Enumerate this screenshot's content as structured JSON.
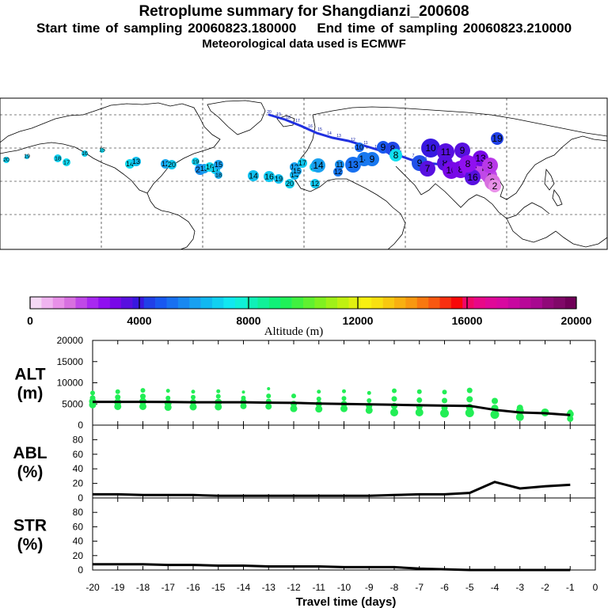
{
  "header": {
    "title": "Retroplume summary for Shangdianzi_200608",
    "start_label": "Start time of sampling 20060823.180000",
    "end_label": "End time of sampling 20060823.210000",
    "met_label": "Meteorological data used is ECMWF"
  },
  "colorbar": {
    "label": "Altitude (m)",
    "ticks": [
      "0",
      "4000",
      "8000",
      "12000",
      "16000",
      "20000"
    ],
    "colors": [
      "#f5d8f5",
      "#f0b4f0",
      "#e890e8",
      "#d870e0",
      "#c048e8",
      "#a828f0",
      "#9010f0",
      "#7808e8",
      "#5810e0",
      "#3818e0",
      "#2040e8",
      "#1858f0",
      "#1870f0",
      "#1888f0",
      "#18a0f0",
      "#10b8f0",
      "#10d0f0",
      "#10e8f0",
      "#10f0d8",
      "#10f0b8",
      "#10f098",
      "#10f078",
      "#20f058",
      "#40f040",
      "#60f030",
      "#80f020",
      "#a0f018",
      "#c0f010",
      "#e0f010",
      "#f8f010",
      "#f8e010",
      "#f8c810",
      "#f8b010",
      "#f89810",
      "#f87810",
      "#f85810",
      "#f83010",
      "#f80808",
      "#f00868",
      "#e80888",
      "#e00898",
      "#d808a0",
      "#c808a0",
      "#b80898",
      "#a80890",
      "#900878",
      "#800868",
      "#700058"
    ]
  },
  "map": {
    "points": [
      {
        "label": "20",
        "c": "#10d0f0"
      },
      {
        "label": "19",
        "c": "#10c8f0"
      },
      {
        "label": "18",
        "c": "#10d0f0"
      },
      {
        "label": "17",
        "c": "#10d8f0"
      },
      {
        "label": "16",
        "c": "#10d0f0"
      },
      {
        "label": "15",
        "c": "#10d8f0"
      },
      {
        "label": "14",
        "c": "#10d8f0"
      },
      {
        "label": "13",
        "c": "#10c0f0"
      },
      {
        "label": "12",
        "c": "#18a8f0"
      },
      {
        "label": "20",
        "c": "#10c8f0"
      },
      {
        "label": "19",
        "c": "#10d0f0"
      },
      {
        "label": "20",
        "c": "#1890f0"
      },
      {
        "label": "13",
        "c": "#18a0f0"
      },
      {
        "label": "16",
        "c": "#10d8f0"
      },
      {
        "label": "17",
        "c": "#10d0f0"
      },
      {
        "label": "18",
        "c": "#18b0f0"
      },
      {
        "label": "15",
        "c": "#18a0f0"
      },
      {
        "label": "14",
        "c": "#10c0f0"
      },
      {
        "label": "16",
        "c": "#10c8f0"
      },
      {
        "label": "19",
        "c": "#10c0f0"
      },
      {
        "label": "20",
        "c": "#10d0f0"
      },
      {
        "label": "17",
        "c": "#10c8f0"
      },
      {
        "label": "13",
        "c": "#18a0f0"
      },
      {
        "label": "14",
        "c": "#10b8f0"
      },
      {
        "label": "15",
        "c": "#18a8f0"
      },
      {
        "label": "12",
        "c": "#10c8f0"
      },
      {
        "label": "11",
        "c": "#10d0f0"
      },
      {
        "label": "14",
        "c": "#18a0f0"
      },
      {
        "label": "11",
        "c": "#1890f0"
      },
      {
        "label": "12",
        "c": "#1878f0"
      },
      {
        "label": "13",
        "c": "#1870f0"
      },
      {
        "label": "14",
        "c": "#1878f0"
      },
      {
        "label": "9",
        "c": "#1878f0"
      },
      {
        "label": "10",
        "c": "#1868f0"
      },
      {
        "label": "9",
        "c": "#1858f0"
      },
      {
        "label": "8",
        "c": "#2048e8"
      },
      {
        "label": "8",
        "c": "#10e0f0"
      },
      {
        "label": "9",
        "c": "#2050e8"
      },
      {
        "label": "7",
        "c": "#5810e0"
      },
      {
        "label": "10",
        "c": "#3818e0"
      },
      {
        "label": "8",
        "c": "#5810e0"
      },
      {
        "label": "11",
        "c": "#5810e0"
      },
      {
        "label": "9",
        "c": "#5810e0"
      },
      {
        "label": "10",
        "c": "#7808e8"
      },
      {
        "label": "8",
        "c": "#7808e8"
      },
      {
        "label": "7",
        "c": "#9010f0"
      },
      {
        "label": "6",
        "c": "#a828f0"
      },
      {
        "label": "5",
        "c": "#c048e8"
      },
      {
        "label": "4",
        "c": "#c048e8"
      },
      {
        "label": "3",
        "c": "#d870e0"
      },
      {
        "label": "2",
        "c": "#e890e8"
      },
      {
        "label": "13",
        "c": "#7808e8"
      },
      {
        "label": "16",
        "c": "#5810e0"
      },
      {
        "label": "19",
        "c": "#2040e8"
      },
      {
        "label": "3",
        "c": "#b838e8"
      },
      {
        "label": "8",
        "c": "#9010f0"
      }
    ],
    "track_labels": [
      "20",
      "19",
      "18",
      "17",
      "16",
      "15",
      "14",
      "13",
      "12",
      "11",
      "10",
      "9",
      "8",
      "7",
      "6",
      "5",
      "4",
      "3",
      "2",
      "1"
    ]
  },
  "panels": [
    {
      "label_top": "ALT",
      "label_bottom": "(m)",
      "yticks": [
        "20000",
        "15000",
        "10000",
        "5000",
        "0"
      ],
      "ymax": 20000,
      "line": [
        [
          -20,
          5500
        ],
        [
          -19,
          5500
        ],
        [
          -18,
          5500
        ],
        [
          -17,
          5450
        ],
        [
          -16,
          5400
        ],
        [
          -15,
          5400
        ],
        [
          -14,
          5400
        ],
        [
          -13,
          5300
        ],
        [
          -12,
          5250
        ],
        [
          -11,
          5100
        ],
        [
          -10,
          5000
        ],
        [
          -9,
          4900
        ],
        [
          -8,
          4800
        ],
        [
          -7,
          4700
        ],
        [
          -6,
          4600
        ],
        [
          -5,
          4550
        ],
        [
          -4,
          3600
        ],
        [
          -3,
          3000
        ],
        [
          -2,
          2800
        ],
        [
          -1,
          2400
        ]
      ],
      "dots": [
        [
          -20,
          4800,
          4.5
        ],
        [
          -20,
          5600,
          4.5
        ],
        [
          -20,
          6400,
          3.5
        ],
        [
          -20,
          7600,
          3
        ],
        [
          -19,
          4400,
          4.5
        ],
        [
          -19,
          5400,
          4.5
        ],
        [
          -19,
          6600,
          3.5
        ],
        [
          -19,
          7900,
          3
        ],
        [
          -18,
          4400,
          4.5
        ],
        [
          -18,
          5600,
          4.5
        ],
        [
          -18,
          6800,
          3.5
        ],
        [
          -18,
          8200,
          3
        ],
        [
          -17,
          4200,
          4.5
        ],
        [
          -17,
          5200,
          4.5
        ],
        [
          -17,
          6400,
          3
        ],
        [
          -17,
          8100,
          2.5
        ],
        [
          -16,
          4300,
          4.5
        ],
        [
          -16,
          5400,
          4
        ],
        [
          -16,
          6600,
          3
        ],
        [
          -16,
          7900,
          2.5
        ],
        [
          -15,
          4300,
          4.5
        ],
        [
          -15,
          5400,
          4.5
        ],
        [
          -15,
          6800,
          3
        ],
        [
          -15,
          8000,
          2.5
        ],
        [
          -14,
          4500,
          4
        ],
        [
          -14,
          5500,
          4
        ],
        [
          -14,
          6400,
          3
        ],
        [
          -14,
          7800,
          2
        ],
        [
          -13,
          4400,
          4
        ],
        [
          -13,
          5600,
          3.5
        ],
        [
          -13,
          6900,
          3
        ],
        [
          -13,
          8600,
          2
        ],
        [
          -12,
          3900,
          4.5
        ],
        [
          -12,
          5000,
          4
        ],
        [
          -12,
          6900,
          3
        ],
        [
          -11,
          3800,
          4.5
        ],
        [
          -11,
          5000,
          4
        ],
        [
          -11,
          6200,
          3
        ],
        [
          -11,
          7900,
          2.5
        ],
        [
          -10,
          3900,
          4.5
        ],
        [
          -10,
          5000,
          4
        ],
        [
          -10,
          6300,
          3
        ],
        [
          -10,
          8000,
          2.5
        ],
        [
          -9,
          3500,
          4.5
        ],
        [
          -9,
          4500,
          4
        ],
        [
          -9,
          5800,
          3
        ],
        [
          -9,
          7600,
          2.5
        ],
        [
          -8,
          3000,
          5
        ],
        [
          -8,
          4500,
          4
        ],
        [
          -8,
          6200,
          3.5
        ],
        [
          -8,
          8100,
          3
        ],
        [
          -7,
          3000,
          5
        ],
        [
          -7,
          4300,
          4
        ],
        [
          -7,
          5900,
          3.5
        ],
        [
          -7,
          7900,
          3
        ],
        [
          -6,
          2800,
          5.5
        ],
        [
          -6,
          4100,
          4
        ],
        [
          -6,
          5800,
          3.5
        ],
        [
          -6,
          7800,
          3
        ],
        [
          -5,
          2900,
          5.5
        ],
        [
          -5,
          4200,
          4.5
        ],
        [
          -5,
          6100,
          4
        ],
        [
          -5,
          8200,
          3.5
        ],
        [
          -4,
          2500,
          5.5
        ],
        [
          -4,
          4000,
          4.5
        ],
        [
          -4,
          5700,
          4
        ],
        [
          -3,
          1900,
          5
        ],
        [
          -3,
          3300,
          5
        ],
        [
          -3,
          4100,
          4
        ],
        [
          -2,
          3000,
          5
        ],
        [
          -1,
          1500,
          4
        ],
        [
          -1,
          2600,
          4.5
        ],
        [
          -1,
          3100,
          3
        ]
      ]
    },
    {
      "label_top": "ABL",
      "label_bottom": "(%)",
      "yticks": [
        "80",
        "60",
        "40",
        "20",
        "0"
      ],
      "ymax": 100,
      "line": [
        [
          -20,
          5
        ],
        [
          -19,
          5
        ],
        [
          -18,
          4
        ],
        [
          -17,
          4
        ],
        [
          -16,
          4
        ],
        [
          -15,
          3
        ],
        [
          -14,
          3
        ],
        [
          -13,
          3
        ],
        [
          -12,
          3
        ],
        [
          -11,
          3
        ],
        [
          -10,
          3
        ],
        [
          -9,
          3
        ],
        [
          -8,
          4
        ],
        [
          -7,
          5
        ],
        [
          -6,
          5
        ],
        [
          -5,
          7
        ],
        [
          -4,
          22
        ],
        [
          -3,
          13
        ],
        [
          -2,
          16
        ],
        [
          -1,
          18
        ]
      ],
      "dots": []
    },
    {
      "label_top": "STR",
      "label_bottom": "(%)",
      "yticks": [
        "80",
        "60",
        "40",
        "20",
        "0"
      ],
      "ymax": 100,
      "line": [
        [
          -20,
          8
        ],
        [
          -19,
          8
        ],
        [
          -18,
          8
        ],
        [
          -17,
          7
        ],
        [
          -16,
          7
        ],
        [
          -15,
          6
        ],
        [
          -14,
          6
        ],
        [
          -13,
          5
        ],
        [
          -12,
          5
        ],
        [
          -11,
          5
        ],
        [
          -10,
          4
        ],
        [
          -9,
          4
        ],
        [
          -8,
          4
        ],
        [
          -7,
          2
        ],
        [
          -6,
          1
        ],
        [
          -5,
          0
        ],
        [
          -4,
          0
        ],
        [
          -3,
          0
        ],
        [
          -2,
          0
        ],
        [
          -1,
          0
        ]
      ],
      "dots": []
    }
  ],
  "xaxis": {
    "label": "Travel time (days)",
    "ticks": [
      "-20",
      "-19",
      "-18",
      "-17",
      "-16",
      "-15",
      "-14",
      "-13",
      "-12",
      "-11",
      "-10",
      "-9",
      "-8",
      "-7",
      "-6",
      "-5",
      "-4",
      "-3",
      "-2",
      "-1",
      "0"
    ]
  },
  "chart_data": {
    "type": "line",
    "title": "Retroplume summary for Shangdianzi_200608",
    "xlabel": "Travel time (days)",
    "x": [
      -20,
      -19,
      -18,
      -17,
      -16,
      -15,
      -14,
      -13,
      -12,
      -11,
      -10,
      -9,
      -8,
      -7,
      -6,
      -5,
      -4,
      -3,
      -2,
      -1
    ],
    "xlim": [
      -20,
      0
    ],
    "series": [
      {
        "name": "ALT (m)",
        "ylim": [
          0,
          20000
        ],
        "values": [
          5500,
          5500,
          5500,
          5450,
          5400,
          5400,
          5400,
          5300,
          5250,
          5100,
          5000,
          4900,
          4800,
          4700,
          4600,
          4550,
          3600,
          3000,
          2800,
          2400
        ]
      },
      {
        "name": "ABL (%)",
        "ylim": [
          0,
          100
        ],
        "values": [
          5,
          5,
          4,
          4,
          4,
          3,
          3,
          3,
          3,
          3,
          3,
          3,
          4,
          5,
          5,
          7,
          22,
          13,
          16,
          18
        ]
      },
      {
        "name": "STR (%)",
        "ylim": [
          0,
          100
        ],
        "values": [
          8,
          8,
          8,
          7,
          7,
          6,
          6,
          5,
          5,
          5,
          4,
          4,
          4,
          2,
          1,
          0,
          0,
          0,
          0,
          0
        ]
      }
    ],
    "colorbar": {
      "label": "Altitude (m)",
      "range": [
        0,
        20000
      ]
    }
  }
}
